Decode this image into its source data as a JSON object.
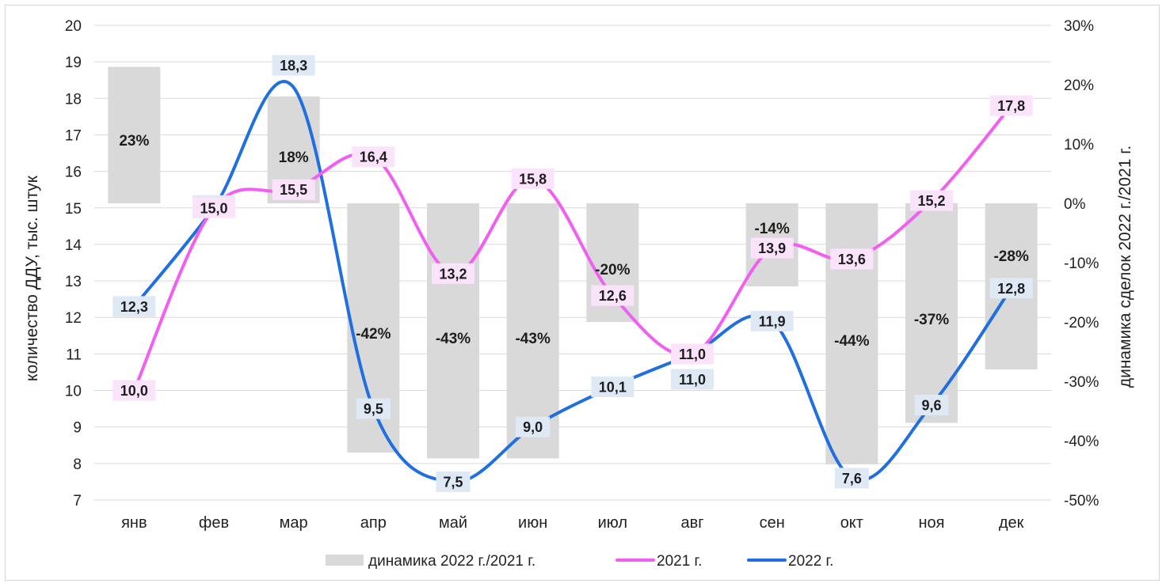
{
  "chart_data": {
    "type": "bar+line",
    "categories": [
      "янв",
      "фев",
      "мар",
      "апр",
      "май",
      "июн",
      "июл",
      "авг",
      "сен",
      "окт",
      "ноя",
      "дек"
    ],
    "series": [
      {
        "name": "динамика 2022 г./2021 г.",
        "axis": "right",
        "kind": "bar",
        "color": "#d9d9d9",
        "values": [
          23,
          0,
          18,
          -42,
          -43,
          -43,
          -20,
          0,
          -14,
          -44,
          -37,
          -28
        ],
        "labels": [
          "23%",
          "",
          "18%",
          "-42%",
          "-43%",
          "-43%",
          "-20%",
          "",
          "-14%",
          "-44%",
          "-37%",
          "-28%"
        ]
      },
      {
        "name": "2021 г.",
        "axis": "left",
        "kind": "line",
        "color": "#f25ef2",
        "values": [
          10.0,
          15.0,
          15.5,
          16.4,
          13.2,
          15.8,
          12.6,
          11.0,
          13.9,
          13.6,
          15.2,
          17.8
        ],
        "labels": [
          "10,0",
          "15,0",
          "15,5",
          "16,4",
          "13,2",
          "15,8",
          "12,6",
          "11,0",
          "13,9",
          "13,6",
          "15,2",
          "17,8"
        ]
      },
      {
        "name": "2022 г.",
        "axis": "left",
        "kind": "line",
        "color": "#1f6fe0",
        "values": [
          12.3,
          15.0,
          18.3,
          9.5,
          7.5,
          9.0,
          10.1,
          11.0,
          11.9,
          7.6,
          9.6,
          12.8
        ],
        "labels": [
          "12,3",
          "15,0",
          "18,3",
          "9,5",
          "7,5",
          "9,0",
          "10,1",
          "11,0",
          "11,9",
          "7,6",
          "9,6",
          "12,8"
        ]
      }
    ],
    "ylabel": "количество ДДУ, тыс. штук",
    "y2label": "динамика сделок 2022 г./2021 г.",
    "ylim": [
      7,
      20
    ],
    "y2lim": [
      -50,
      30
    ],
    "yticks": [
      "7",
      "8",
      "9",
      "10",
      "11",
      "12",
      "13",
      "14",
      "15",
      "16",
      "17",
      "18",
      "19",
      "20"
    ],
    "y2ticks": [
      "-50%",
      "-40%",
      "-30%",
      "-20%",
      "-10%",
      "0%",
      "10%",
      "20%",
      "30%"
    ],
    "grid": true,
    "legend": "bottom-center"
  },
  "legend": {
    "bar": "динамика 2022 г./2021 г.",
    "line2021": "2021 г.",
    "line2022": "2022 г."
  },
  "colors": {
    "bar": "#d9d9d9",
    "line2021": "#f25ef2",
    "label2021_bg": "#fbe3fb",
    "line2022": "#1f6fe0",
    "label2022_bg": "#dfe9f6"
  }
}
